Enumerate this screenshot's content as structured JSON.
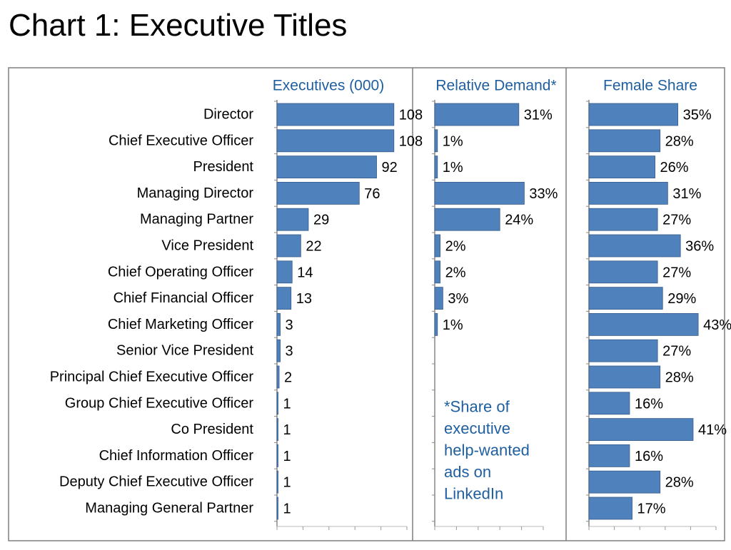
{
  "title": "Chart 1: Executive Titles",
  "colors": {
    "bar": "#4f81bd",
    "bar_edge": "#385d8a",
    "panel_title": "#1f5fa0",
    "frame": "#7f7f7f"
  },
  "chart_data": {
    "type": "bar",
    "orientation": "horizontal",
    "categories": [
      "Director",
      "Chief Executive Officer",
      "President",
      "Managing Director",
      "Managing Partner",
      "Vice President",
      "Chief Operating Officer",
      "Chief Financial Officer",
      "Chief Marketing Officer",
      "Senior Vice President",
      "Principal Chief Executive Officer",
      "Group Chief Executive Officer",
      "Co President",
      "Chief Information Officer",
      "Deputy Chief Executive Officer",
      "Managing General Partner"
    ],
    "series": [
      {
        "name": "Executives (000)",
        "values": [
          108,
          108,
          92,
          76,
          29,
          22,
          14,
          13,
          3,
          3,
          2,
          1,
          1,
          1,
          1,
          1
        ],
        "labels": [
          "108",
          "108",
          "92",
          "76",
          "29",
          "22",
          "14",
          "13",
          "3",
          "3",
          "2",
          "1",
          "1",
          "1",
          "1",
          "1"
        ],
        "xlim": [
          0,
          120
        ]
      },
      {
        "name": "Relative Demand*",
        "values": [
          31,
          1,
          1,
          33,
          24,
          2,
          2,
          3,
          1,
          null,
          null,
          null,
          null,
          null,
          null,
          null
        ],
        "labels": [
          "31%",
          "1%",
          "1%",
          "33%",
          "24%",
          "2%",
          "2%",
          "3%",
          "1%",
          "",
          "",
          "",
          "",
          "",
          "",
          ""
        ],
        "xlim": [
          0,
          40
        ]
      },
      {
        "name": "Female Share",
        "values": [
          35,
          28,
          26,
          31,
          27,
          36,
          27,
          29,
          43,
          27,
          28,
          16,
          41,
          16,
          28,
          17
        ],
        "labels": [
          "35%",
          "28%",
          "26%",
          "31%",
          "27%",
          "36%",
          "27%",
          "29%",
          "43%",
          "27%",
          "28%",
          "16%",
          "41%",
          "16%",
          "28%",
          "17%"
        ],
        "xlim": [
          0,
          50
        ]
      }
    ],
    "note": [
      "*Share of",
      "executive",
      "help-wanted",
      "ads on",
      "LinkedIn"
    ]
  }
}
